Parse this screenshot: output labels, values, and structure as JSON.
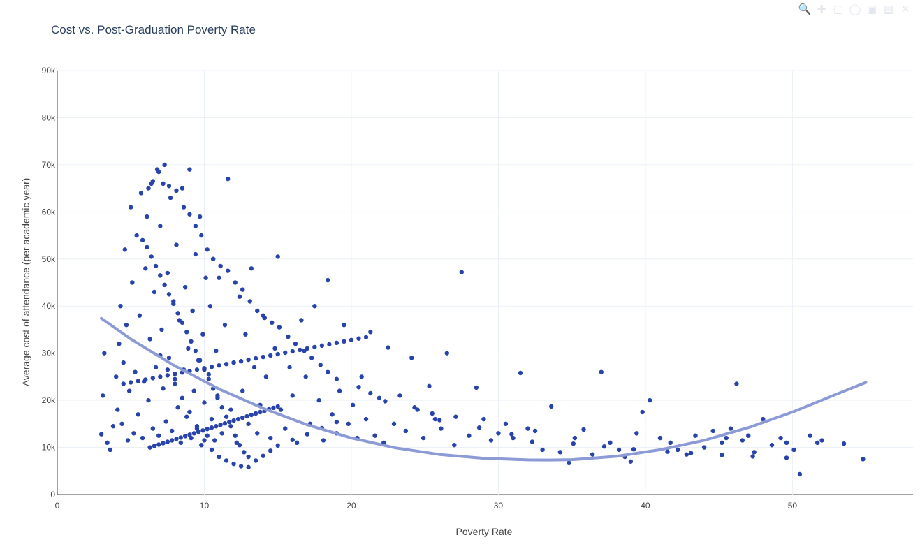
{
  "chart_data": {
    "type": "scatter",
    "title": "Cost vs. Post-Graduation Poverty Rate",
    "xlabel": "Poverty Rate",
    "ylabel": "Average cost of attendance (per academic year)",
    "xlim": [
      0,
      58.2
    ],
    "ylim": [
      0,
      90000
    ],
    "x_ticks": [
      0,
      10,
      20,
      30,
      40,
      50
    ],
    "x_tick_labels": [
      "0",
      "10",
      "20",
      "30",
      "40",
      "50"
    ],
    "y_ticks": [
      0,
      10000,
      20000,
      30000,
      40000,
      50000,
      60000,
      70000,
      80000,
      90000
    ],
    "y_tick_labels": [
      "0",
      "10k",
      "20k",
      "30k",
      "40k",
      "50k",
      "60k",
      "70k",
      "80k",
      "90k"
    ],
    "grid": true,
    "legend": "none",
    "marker_color": "#2844ab",
    "trend_color": "#8c9bd6",
    "series": [
      {
        "type": "scatter",
        "x": [
          3.0,
          3.1,
          3.2,
          3.4,
          3.6,
          3.8,
          4.0,
          4.1,
          4.2,
          4.3,
          4.4,
          4.5,
          4.6,
          4.7,
          4.8,
          4.9,
          5.0,
          5.1,
          5.2,
          5.3,
          5.4,
          5.5,
          5.6,
          5.7,
          5.8,
          5.9,
          6.0,
          6.1,
          6.2,
          6.3,
          6.4,
          6.5,
          6.6,
          6.7,
          6.8,
          6.9,
          7.0,
          7.1,
          7.2,
          7.3,
          7.4,
          7.5,
          7.6,
          7.7,
          7.8,
          7.9,
          8.0,
          8.1,
          8.2,
          8.3,
          8.4,
          8.5,
          8.6,
          8.7,
          8.8,
          8.9,
          9.0,
          9.1,
          9.2,
          9.3,
          9.4,
          9.5,
          9.6,
          9.7,
          9.8,
          9.9,
          10.0,
          10.1,
          10.2,
          10.3,
          10.4,
          10.5,
          10.6,
          10.7,
          10.8,
          10.9,
          11.0,
          11.2,
          11.4,
          11.6,
          11.8,
          12.0,
          12.2,
          12.4,
          12.6,
          12.8,
          13.0,
          13.2,
          13.4,
          13.6,
          13.8,
          14.0,
          14.2,
          14.5,
          14.8,
          15.0,
          15.2,
          15.5,
          15.8,
          16.0,
          16.3,
          16.6,
          16.9,
          17.2,
          17.5,
          17.8,
          18.1,
          18.4,
          18.7,
          19.0,
          19.2,
          19.5,
          19.8,
          20.1,
          20.4,
          20.7,
          21.0,
          21.3,
          21.6,
          21.9,
          22.2,
          22.5,
          22.9,
          23.3,
          23.7,
          24.1,
          24.5,
          24.9,
          25.3,
          25.7,
          26.1,
          26.5,
          27.0,
          27.5,
          28.0,
          28.5,
          29.0,
          29.5,
          30.0,
          30.5,
          31.0,
          31.5,
          32.0,
          32.5,
          33.0,
          33.6,
          34.2,
          34.8,
          35.2,
          35.8,
          36.4,
          37.0,
          37.6,
          38.2,
          38.6,
          39.0,
          39.4,
          39.8,
          40.3,
          41.0,
          41.7,
          42.2,
          42.8,
          43.4,
          44.0,
          44.6,
          45.2,
          45.5,
          45.8,
          46.2,
          46.6,
          47.0,
          47.4,
          48.0,
          48.6,
          49.2,
          49.6,
          50.1,
          50.5,
          51.2,
          51.7,
          52.0,
          53.5,
          54.8,
          6.2,
          6.5,
          6.9,
          7.2,
          7.6,
          8.1,
          8.6,
          9.0,
          9.4,
          9.8,
          10.2,
          10.6,
          11.1,
          11.6,
          12.1,
          12.6,
          13.1,
          13.6,
          14.1,
          14.6,
          15.1,
          15.7,
          16.2,
          16.8,
          17.3,
          17.9,
          18.4,
          19.0,
          20.5,
          21.3,
          22.3,
          24.3,
          25.5,
          26.0,
          27.1,
          28.7,
          30.9,
          32.3,
          35.1,
          37.2,
          39.2,
          41.5,
          43.1,
          45.2,
          47.3,
          49.6,
          7.0,
          7.5,
          8.0,
          8.5,
          9.0,
          9.5,
          10.0,
          10.5,
          11.0,
          11.5,
          12.0,
          12.5,
          13.0,
          13.5,
          14.0,
          14.5,
          15.0,
          16.0,
          17.0,
          18.0,
          19.0,
          5.8,
          6.1,
          6.4,
          6.7,
          7.0,
          7.3,
          7.6,
          7.9,
          8.2,
          8.5,
          8.8,
          9.1,
          9.4,
          9.7,
          10.0,
          10.3,
          10.6,
          10.9,
          11.2,
          11.5,
          11.8,
          12.1,
          12.4,
          12.7,
          13.0,
          4.5,
          5.0,
          5.5,
          6.0,
          6.5,
          7.0,
          7.5,
          8.0,
          8.5,
          9.0,
          9.5,
          10.0,
          10.5,
          11.0,
          11.5,
          12.0,
          12.5,
          13.0,
          13.5,
          14.0,
          14.5,
          15.0,
          15.5,
          16.0,
          16.5,
          17.0,
          17.5,
          18.0,
          18.5,
          19.0,
          19.5,
          20.0,
          20.5,
          21.0,
          6.3,
          6.6,
          6.9,
          7.2,
          7.5,
          7.8,
          8.1,
          8.4,
          8.7,
          9.0,
          9.3,
          9.6,
          9.9,
          10.2,
          10.5,
          10.8,
          11.1,
          11.4,
          11.7,
          12.0,
          12.3,
          12.6,
          12.9,
          13.2,
          13.5,
          13.8,
          14.1,
          14.4,
          14.7,
          15.0
        ],
        "y": [
          12800,
          21000,
          30000,
          11000,
          9500,
          14500,
          25000,
          18000,
          32000,
          40000,
          15000,
          28000,
          52000,
          36000,
          11500,
          22000,
          61000,
          45000,
          13000,
          26000,
          55000,
          17000,
          38000,
          64000,
          12000,
          24000,
          48000,
          59000,
          20000,
          33000,
          66000,
          14000,
          43000,
          27000,
          69000,
          12500,
          57000,
          35000,
          22500,
          70000,
          15500,
          47000,
          29000,
          63000,
          13500,
          41000,
          24500,
          53000,
          18500,
          37000,
          11000,
          65000,
          26500,
          44000,
          16500,
          31000,
          69000,
          12000,
          39000,
          22000,
          51000,
          14000,
          28500,
          59000,
          10500,
          34000,
          19500,
          46000,
          12500,
          25500,
          40000,
          16000,
          50000,
          11500,
          30500,
          21000,
          46000,
          13000,
          36000,
          67000,
          18000,
          28000,
          11000,
          42000,
          22000,
          34000,
          15000,
          48000,
          27000,
          13000,
          19000,
          38000,
          25000,
          12000,
          31000,
          50500,
          18000,
          14000,
          27000,
          21000,
          11000,
          37000,
          25000,
          15000,
          40000,
          20000,
          11500,
          45500,
          17000,
          13000,
          22000,
          36000,
          15000,
          19000,
          12000,
          25000,
          16000,
          34500,
          12500,
          20500,
          11000,
          31200,
          15000,
          21000,
          13500,
          29000,
          18000,
          12000,
          23000,
          16000,
          14000,
          30000,
          10500,
          47200,
          12500,
          22700,
          16000,
          11500,
          13000,
          15000,
          12000,
          25800,
          14000,
          13500,
          9500,
          18700,
          9000,
          6700,
          12000,
          13800,
          8500,
          26000,
          11000,
          9500,
          8000,
          7000,
          13000,
          17500,
          20000,
          12000,
          11000,
          9500,
          8500,
          12500,
          10000,
          13500,
          11000,
          12000,
          14000,
          23500,
          11500,
          12500,
          9000,
          16000,
          10500,
          12000,
          11000,
          9500,
          4300,
          12500,
          11000,
          11500,
          10800,
          7500,
          65000,
          66500,
          68500,
          66000,
          65500,
          64500,
          61000,
          59500,
          57000,
          55000,
          52000,
          50000,
          48500,
          47500,
          45000,
          43500,
          41000,
          39000,
          37500,
          36500,
          35500,
          33500,
          32000,
          30500,
          29000,
          27500,
          26000,
          24500,
          22800,
          21500,
          19800,
          18500,
          17200,
          15800,
          16500,
          14200,
          12800,
          11200,
          10800,
          10200,
          9600,
          9100,
          8800,
          8400,
          8100,
          7800,
          29500,
          26500,
          23500,
          20500,
          17500,
          14500,
          11500,
          9500,
          8000,
          7200,
          6500,
          6000,
          5800,
          7200,
          8200,
          9300,
          10400,
          11600,
          12800,
          14100,
          15400,
          54000,
          52500,
          50500,
          48500,
          46500,
          44500,
          42500,
          40500,
          38500,
          36500,
          34500,
          32500,
          30500,
          28500,
          26500,
          24500,
          22500,
          20500,
          18500,
          16500,
          14500,
          12500,
          10500,
          9000,
          8000,
          23500,
          23800,
          24100,
          24400,
          24700,
          25000,
          25300,
          25600,
          25900,
          26200,
          26500,
          26800,
          27100,
          27400,
          27700,
          28000,
          28300,
          28600,
          28900,
          29200,
          29500,
          29800,
          30100,
          30400,
          30700,
          31000,
          31300,
          31600,
          31900,
          32200,
          32500,
          32800,
          33100,
          33400,
          10000,
          10300,
          10600,
          10900,
          11200,
          11500,
          11800,
          12100,
          12400,
          12700,
          13000,
          13300,
          13600,
          13900,
          14200,
          14500,
          14800,
          15100,
          15400,
          15700,
          16000,
          16300,
          16600,
          16900,
          17200,
          17500,
          17800,
          18100,
          18400,
          18700
        ]
      },
      {
        "type": "line",
        "x": [
          3,
          5,
          8,
          11,
          14,
          17,
          20,
          23,
          26,
          29,
          32,
          33.5,
          35,
          38,
          41,
          44,
          47,
          50,
          53,
          55
        ],
        "y": [
          37400,
          33000,
          27300,
          22400,
          18300,
          14800,
          12000,
          9900,
          8500,
          7700,
          7350,
          7320,
          7400,
          8100,
          9500,
          11500,
          14200,
          17500,
          21300,
          23800
        ]
      }
    ]
  }
}
